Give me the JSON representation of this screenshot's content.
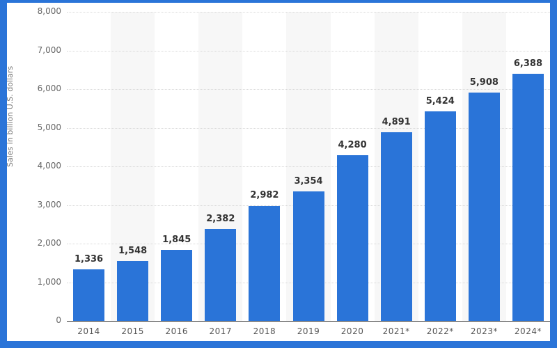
{
  "chart_data": {
    "type": "bar",
    "title": "",
    "xlabel": "",
    "ylabel": "Sales in billion U.S. dollars",
    "categories": [
      "2014",
      "2015",
      "2016",
      "2017",
      "2018",
      "2019",
      "2020",
      "2021*",
      "2022*",
      "2023*",
      "2024*"
    ],
    "values": [
      1336,
      1548,
      1845,
      2382,
      2982,
      3354,
      4280,
      4891,
      5424,
      5908,
      6388
    ],
    "value_labels": [
      "1,336",
      "1,548",
      "1,845",
      "2,382",
      "2,982",
      "3,354",
      "4,280",
      "4,891",
      "5,424",
      "5,908",
      "6,388"
    ],
    "ylim": [
      0,
      8000
    ],
    "yticks": [
      0,
      1000,
      2000,
      3000,
      4000,
      5000,
      6000,
      7000,
      8000
    ],
    "ytick_labels": [
      "0",
      "1,000",
      "2,000",
      "3,000",
      "4,000",
      "5,000",
      "6,000",
      "7,000",
      "8,000"
    ],
    "grid": true,
    "legend": null,
    "colors": {
      "bar": "#2a74d8",
      "frame": "#2a74d8"
    }
  }
}
